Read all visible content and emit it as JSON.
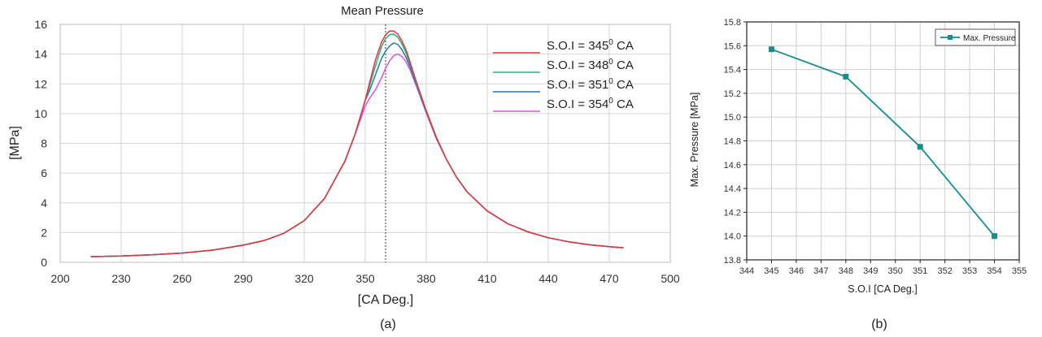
{
  "chart_data": [
    {
      "type": "line",
      "title": "Mean Pressure",
      "xlabel": "[CA Deg.]",
      "ylabel": "[MPa]",
      "caption": "(a)",
      "xlim": [
        200,
        500
      ],
      "ylim": [
        0,
        16
      ],
      "xticks": [
        "200",
        "230",
        "260",
        "290",
        "320",
        "350",
        "380",
        "410",
        "440",
        "470",
        "500"
      ],
      "yticks": [
        "0",
        "2",
        "4",
        "6",
        "8",
        "10",
        "12",
        "14",
        "16"
      ],
      "grid": true,
      "legend_position": "top-right",
      "tdc_marker_x": 360,
      "series": [
        {
          "name_prefix": "S.O.I = 345",
          "sup": "0",
          "unit": " CA",
          "color": "#e8333c",
          "x": [
            215,
            230,
            245,
            260,
            275,
            290,
            300,
            310,
            320,
            330,
            340,
            345,
            350,
            352,
            355,
            358,
            360,
            362,
            364,
            366,
            368,
            370,
            372,
            375,
            380,
            385,
            390,
            395,
            400,
            410,
            420,
            430,
            440,
            450,
            460,
            470,
            477
          ],
          "y": [
            0.38,
            0.42,
            0.5,
            0.62,
            0.82,
            1.15,
            1.45,
            1.95,
            2.8,
            4.3,
            6.8,
            8.6,
            10.9,
            12.0,
            13.6,
            14.8,
            15.3,
            15.55,
            15.55,
            15.35,
            14.9,
            14.3,
            13.5,
            12.2,
            10.2,
            8.4,
            6.9,
            5.7,
            4.75,
            3.45,
            2.6,
            2.05,
            1.65,
            1.38,
            1.18,
            1.05,
            0.98
          ]
        },
        {
          "name_prefix": "S.O.I = 348",
          "sup": "0",
          "unit": " CA",
          "color": "#22b573",
          "x": [
            215,
            230,
            245,
            260,
            275,
            290,
            300,
            310,
            320,
            330,
            340,
            345,
            350,
            352,
            355,
            358,
            360,
            362,
            364,
            366,
            368,
            370,
            372,
            375,
            380,
            385,
            390,
            395,
            400,
            410,
            420,
            430,
            440,
            450,
            460,
            470,
            477
          ],
          "y": [
            0.38,
            0.42,
            0.5,
            0.62,
            0.82,
            1.15,
            1.45,
            1.95,
            2.8,
            4.3,
            6.8,
            8.6,
            10.9,
            11.8,
            13.2,
            14.5,
            15.05,
            15.3,
            15.35,
            15.15,
            14.7,
            14.1,
            13.35,
            12.1,
            10.15,
            8.4,
            6.9,
            5.7,
            4.75,
            3.45,
            2.6,
            2.05,
            1.65,
            1.38,
            1.18,
            1.05,
            0.98
          ]
        },
        {
          "name_prefix": "S.O.I = 351",
          "sup": "0",
          "unit": " CA",
          "color": "#1f77c4",
          "x": [
            215,
            230,
            245,
            260,
            275,
            290,
            300,
            310,
            320,
            330,
            340,
            345,
            350,
            352,
            355,
            358,
            360,
            362,
            364,
            366,
            368,
            370,
            372,
            375,
            380,
            385,
            390,
            395,
            400,
            410,
            420,
            430,
            440,
            450,
            460,
            470,
            477
          ],
          "y": [
            0.38,
            0.42,
            0.5,
            0.62,
            0.82,
            1.15,
            1.45,
            1.95,
            2.8,
            4.3,
            6.8,
            8.6,
            10.9,
            11.5,
            12.6,
            13.7,
            14.2,
            14.55,
            14.75,
            14.65,
            14.3,
            13.8,
            13.15,
            12.0,
            10.1,
            8.35,
            6.9,
            5.7,
            4.75,
            3.45,
            2.6,
            2.05,
            1.65,
            1.38,
            1.18,
            1.05,
            0.98
          ]
        },
        {
          "name_prefix": "S.O.I = 354",
          "sup": "0",
          "unit": " CA",
          "color": "#e24fe0",
          "x": [
            215,
            230,
            245,
            260,
            275,
            290,
            300,
            310,
            320,
            330,
            340,
            345,
            350,
            352,
            355,
            358,
            360,
            362,
            364,
            366,
            368,
            370,
            372,
            375,
            380,
            385,
            390,
            395,
            400,
            410,
            420,
            430,
            440,
            450,
            460,
            470,
            477
          ],
          "y": [
            0.38,
            0.42,
            0.5,
            0.62,
            0.82,
            1.15,
            1.45,
            1.95,
            2.8,
            4.3,
            6.8,
            8.6,
            10.5,
            11.0,
            11.6,
            12.4,
            13.05,
            13.55,
            13.9,
            14.0,
            13.85,
            13.5,
            12.95,
            11.9,
            10.05,
            8.3,
            6.9,
            5.7,
            4.75,
            3.45,
            2.6,
            2.05,
            1.65,
            1.38,
            1.18,
            1.05,
            0.98
          ]
        }
      ]
    },
    {
      "type": "line",
      "title": "",
      "xlabel": "S.O.I [CA Deg.]",
      "ylabel": "Max. Pressure [MPa]",
      "caption": "(b)",
      "xlim": [
        344,
        355
      ],
      "ylim": [
        13.8,
        15.8
      ],
      "xticks": [
        "344",
        "345",
        "346",
        "347",
        "348",
        "349",
        "350",
        "351",
        "352",
        "353",
        "354",
        "355"
      ],
      "yticks": [
        "13.8",
        "14.0",
        "14.2",
        "14.4",
        "14.6",
        "14.8",
        "15.0",
        "15.2",
        "15.4",
        "15.6",
        "15.8"
      ],
      "grid": true,
      "legend_position": "top-right",
      "series": [
        {
          "name": "Max. Pressure",
          "color": "#10918f",
          "x": [
            345,
            348,
            351,
            354
          ],
          "y": [
            15.57,
            15.34,
            14.75,
            14.0
          ]
        }
      ]
    }
  ]
}
